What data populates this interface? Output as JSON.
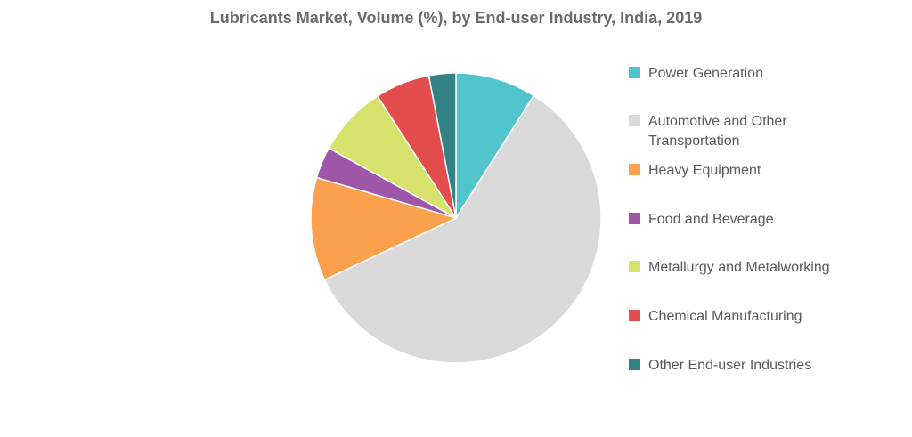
{
  "chart_data": {
    "type": "pie",
    "title": "Lubricants Market, Volume (%), by End-user Industry, India, 2019",
    "legend_position": "right",
    "slices": [
      {
        "label": "Power Generation",
        "value": 9.0,
        "color": "#52c4cc"
      },
      {
        "label": "Automotive and Other Transportation",
        "value": 59.0,
        "color": "#d9d9d9"
      },
      {
        "label": "Heavy Equipment",
        "value": 11.5,
        "color": "#fba14e"
      },
      {
        "label": "Food and Beverage",
        "value": 3.5,
        "color": "#a056a8"
      },
      {
        "label": "Metallurgy and Metalworking",
        "value": 7.9,
        "color": "#d6e26b"
      },
      {
        "label": "Chemical Manufacturing",
        "value": 6.1,
        "color": "#e34d4d"
      },
      {
        "label": "Other End-user Industries",
        "value": 3.0,
        "color": "#338285"
      }
    ]
  }
}
